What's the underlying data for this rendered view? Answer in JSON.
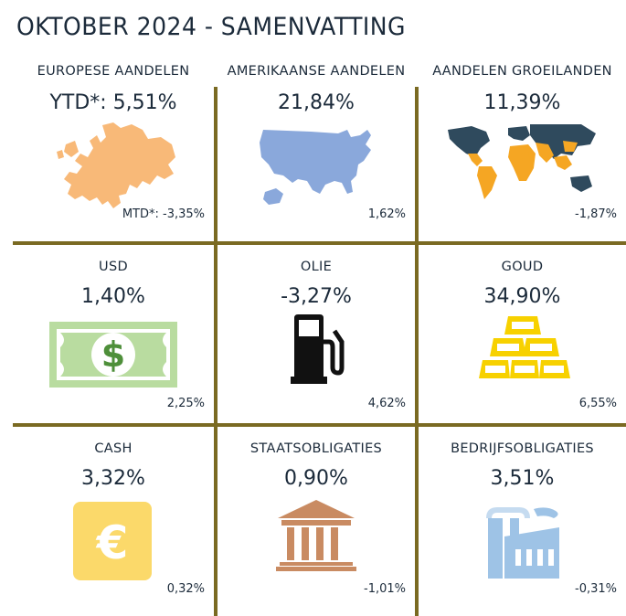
{
  "title": "OKTOBER 2024 - SAMENVATTING",
  "colors": {
    "divider": "#7a6a22",
    "text": "#1b2a3a",
    "europe": "#f8b978",
    "usa": "#8aa8db",
    "world_dark": "#2f4a5d",
    "world_light": "#f5a623",
    "usd": "#b9dca0",
    "usd_symbol": "#4e8f3a",
    "oil": "#111111",
    "gold": "#f7d100",
    "cash": "#fbd96a",
    "bank": "#c98b62",
    "factory": "#9ec3e6"
  },
  "cells": [
    {
      "label": "EUROPESE AANDELEN",
      "value": "YTD*: 5,51%",
      "mtd": "MTD*: -3,35%",
      "icon": "europe-map-icon"
    },
    {
      "label": "AMERIKAANSE AANDELEN",
      "value": "21,84%",
      "mtd": "1,62%",
      "icon": "usa-map-icon"
    },
    {
      "label": "AANDELEN GROEILANDEN",
      "value": "11,39%",
      "mtd": "-1,87%",
      "icon": "world-map-icon"
    },
    {
      "label": "USD",
      "value": "1,40%",
      "mtd": "2,25%",
      "icon": "dollar-bill-icon"
    },
    {
      "label": "OLIE",
      "value": "-3,27%",
      "mtd": "4,62%",
      "icon": "fuel-pump-icon"
    },
    {
      "label": "GOUD",
      "value": "34,90%",
      "mtd": "6,55%",
      "icon": "gold-bars-icon"
    },
    {
      "label": "CASH",
      "value": "3,32%",
      "mtd": "0,32%",
      "icon": "euro-icon"
    },
    {
      "label": "STAATSOBLIGATIES",
      "value": "0,90%",
      "mtd": "-1,01%",
      "icon": "bank-building-icon"
    },
    {
      "label": "BEDRIJFSOBLIGATIES",
      "value": "3,51%",
      "mtd": "-0,31%",
      "icon": "factory-icon"
    }
  ]
}
